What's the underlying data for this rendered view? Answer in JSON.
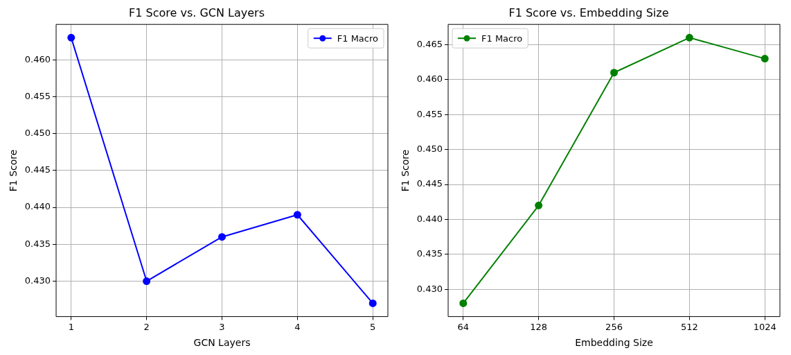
{
  "chart_data": [
    {
      "type": "line",
      "title": "F1 Score vs. GCN Layers",
      "xlabel": "GCN Layers",
      "ylabel": "F1 Score",
      "x": [
        1,
        2,
        3,
        4,
        5
      ],
      "series": [
        {
          "name": "F1 Macro",
          "color": "#0000ff",
          "values": [
            0.463,
            0.43,
            0.436,
            0.439,
            0.427
          ]
        }
      ],
      "xlim": [
        0.8,
        5.2
      ],
      "xticks": [
        1,
        2,
        3,
        4,
        5
      ],
      "ylim": [
        0.4252,
        0.4648
      ],
      "yticks": [
        {
          "value": 0.43,
          "label": "0.430"
        },
        {
          "value": 0.435,
          "label": "0.435"
        },
        {
          "value": 0.44,
          "label": "0.440"
        },
        {
          "value": 0.445,
          "label": "0.445"
        },
        {
          "value": 0.45,
          "label": "0.450"
        },
        {
          "value": 0.455,
          "label": "0.455"
        },
        {
          "value": 0.46,
          "label": "0.460"
        }
      ],
      "grid": true,
      "legend": "top right",
      "marker": "circle",
      "line_style": "solid"
    },
    {
      "type": "line",
      "title": "F1 Score vs. Embedding Size",
      "xlabel": "Embedding Size",
      "ylabel": "F1 Score",
      "x": [
        64,
        128,
        256,
        512,
        1024
      ],
      "series": [
        {
          "name": "F1 Macro",
          "color": "#008000",
          "values": [
            0.428,
            0.442,
            0.461,
            0.466,
            0.463
          ]
        }
      ],
      "xlim": [
        55.7,
        1176.3
      ],
      "xticks": [
        64,
        128,
        256,
        512,
        1024
      ],
      "ylim": [
        0.4261,
        0.4679
      ],
      "yticks": [
        {
          "value": 0.43,
          "label": "0.430"
        },
        {
          "value": 0.435,
          "label": "0.435"
        },
        {
          "value": 0.44,
          "label": "0.440"
        },
        {
          "value": 0.445,
          "label": "0.445"
        },
        {
          "value": 0.45,
          "label": "0.450"
        },
        {
          "value": 0.455,
          "label": "0.455"
        },
        {
          "value": 0.46,
          "label": "0.460"
        },
        {
          "value": 0.465,
          "label": "0.465"
        }
      ],
      "log": "x",
      "grid": true,
      "legend": "top left",
      "marker": "circle",
      "line_style": "solid"
    }
  ]
}
